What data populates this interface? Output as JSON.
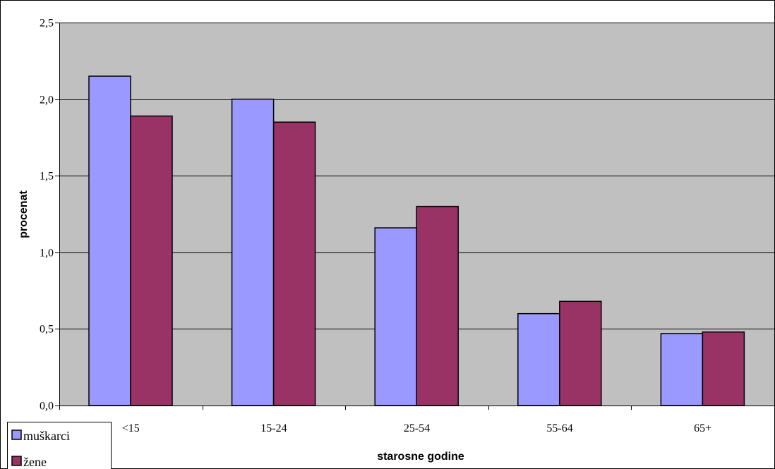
{
  "chart_data": {
    "type": "bar",
    "categories": [
      "<15",
      "15-24",
      "25-54",
      "55-64",
      "65+"
    ],
    "series": [
      {
        "name": "muškarci",
        "values": [
          2.15,
          2.0,
          1.16,
          0.6,
          0.47
        ],
        "color": "#9999ff"
      },
      {
        "name": "žene",
        "values": [
          1.89,
          1.85,
          1.3,
          0.68,
          0.48
        ],
        "color": "#993366"
      }
    ],
    "xlabel": "starosne godine",
    "ylabel": "procenat",
    "ylim": [
      0,
      2.5
    ],
    "yticks": [
      "0,0",
      "0,5",
      "1,0",
      "1,5",
      "2,0",
      "2,5"
    ],
    "grid": true,
    "legend_position": "bottom-left",
    "plot_background": "#c0c0c0"
  }
}
